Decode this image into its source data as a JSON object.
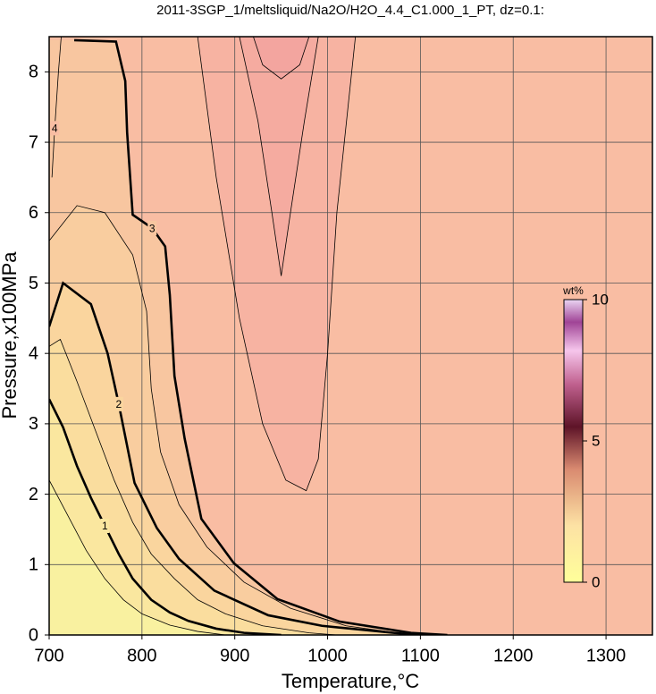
{
  "chart_data": {
    "type": "contour",
    "title": "2011-3SGP_1/meltsliquid/Na2O/H2O_4.4_C1.000_1_PT, dz=0.1:",
    "x_label": "Temperature,°C",
    "y_label": "Pressure,x100MPa",
    "xlim": [
      700,
      1350
    ],
    "xticks": [
      700,
      800,
      900,
      1000,
      1100,
      1200,
      1300
    ],
    "ylim": [
      0,
      8.5
    ],
    "yticks": [
      0,
      1,
      2,
      3,
      4,
      5,
      6,
      7,
      8
    ],
    "grid": true,
    "background": "#f9bda3",
    "contours": [
      {
        "level": 2.9,
        "bold": false,
        "labeled": false,
        "fill": "#f7b3a2",
        "temperature": [
          860,
          880,
          905,
          930,
          955,
          977,
          990,
          1000,
          1010,
          1030
        ],
        "pressure": [
          8.5,
          6.5,
          4.5,
          3.0,
          2.2,
          2.05,
          2.5,
          4.0,
          6.0,
          8.5
        ]
      },
      {
        "level": 2.8,
        "bold": false,
        "labeled": false,
        "fill": "#f5aba0",
        "temperature": [
          905,
          925,
          940,
          950,
          960,
          975,
          990
        ],
        "pressure": [
          8.5,
          7.3,
          6.0,
          5.1,
          6.0,
          7.3,
          8.5
        ]
      },
      {
        "level": 2.7,
        "bold": false,
        "labeled": false,
        "fill": "#f3a59f",
        "temperature": [
          920,
          930,
          950,
          970,
          980
        ],
        "pressure": [
          8.5,
          8.1,
          7.9,
          8.1,
          8.5
        ]
      },
      {
        "level": 3,
        "bold": true,
        "labeled": true,
        "fill": "#f8c6a0",
        "temperature": [
          727,
          772,
          782,
          784,
          790,
          811,
          825,
          830,
          835,
          846,
          864,
          899,
          946,
          1013,
          1090,
          1129
        ],
        "pressure": [
          8.45,
          8.43,
          7.87,
          7.14,
          5.97,
          5.78,
          5.52,
          4.83,
          3.68,
          2.79,
          1.65,
          1.02,
          0.51,
          0.19,
          0.03,
          0
        ]
      },
      {
        "level": 2.5,
        "bold": false,
        "labeled": false,
        "fill": "#f9cd9f",
        "temperature": [
          700,
          730,
          760,
          790,
          805,
          810,
          820,
          840,
          870,
          910,
          960,
          1020,
          1080,
          1110
        ],
        "pressure": [
          5.6,
          6.1,
          6.0,
          5.4,
          4.6,
          3.5,
          2.6,
          1.85,
          1.25,
          0.75,
          0.38,
          0.13,
          0.02,
          0
        ]
      },
      {
        "level": 2,
        "bold": true,
        "labeled": true,
        "fill": "#fad59e",
        "temperature": [
          700,
          715,
          745,
          763,
          775,
          792,
          816,
          840,
          878,
          936,
          994,
          1071,
          1100
        ],
        "pressure": [
          4.38,
          5.0,
          4.7,
          4.0,
          3.28,
          2.16,
          1.52,
          1.08,
          0.63,
          0.28,
          0.13,
          0.03,
          0
        ]
      },
      {
        "level": 1.5,
        "bold": false,
        "labeled": false,
        "fill": "#fadd9e",
        "temperature": [
          700,
          712,
          730,
          750,
          770,
          790,
          810,
          835,
          860,
          890,
          930,
          980,
          1010
        ],
        "pressure": [
          4.1,
          4.2,
          3.6,
          2.9,
          2.2,
          1.6,
          1.15,
          0.8,
          0.5,
          0.3,
          0.13,
          0.03,
          0
        ]
      },
      {
        "level": 1,
        "bold": true,
        "labeled": true,
        "fill": "#fae79f",
        "temperature": [
          700,
          715,
          730,
          745,
          760,
          775,
          790,
          810,
          830,
          850,
          880,
          910,
          950
        ],
        "pressure": [
          3.35,
          2.95,
          2.4,
          1.95,
          1.55,
          1.15,
          0.8,
          0.5,
          0.32,
          0.2,
          0.09,
          0.03,
          0
        ]
      },
      {
        "level": 0.5,
        "bold": false,
        "labeled": false,
        "fill": "#f9f1a0",
        "temperature": [
          700,
          720,
          740,
          760,
          780,
          800,
          830,
          860,
          890
        ],
        "pressure": [
          2.2,
          1.7,
          1.2,
          0.8,
          0.5,
          0.3,
          0.14,
          0.05,
          0
        ]
      },
      {
        "level": 4,
        "bold": false,
        "labeled": true,
        "temperature": [
          703,
          706,
          710,
          713
        ],
        "pressure": [
          6.5,
          7.2,
          8.0,
          8.5
        ]
      }
    ],
    "color_label": "wt%",
    "clim": [
      0,
      10
    ],
    "cticks": [
      0,
      5,
      10
    ],
    "colormap": [
      {
        "value": 0,
        "color": "#ffff9a"
      },
      {
        "value": 2,
        "color": "#fde2a4"
      },
      {
        "value": 4,
        "color": "#d98a70"
      },
      {
        "value": 5.5,
        "color": "#5e1428"
      },
      {
        "value": 7,
        "color": "#c0608e"
      },
      {
        "value": 8.2,
        "color": "#f6c6ec"
      },
      {
        "value": 9.2,
        "color": "#a04496"
      },
      {
        "value": 10,
        "color": "#ead4f2"
      }
    ]
  }
}
